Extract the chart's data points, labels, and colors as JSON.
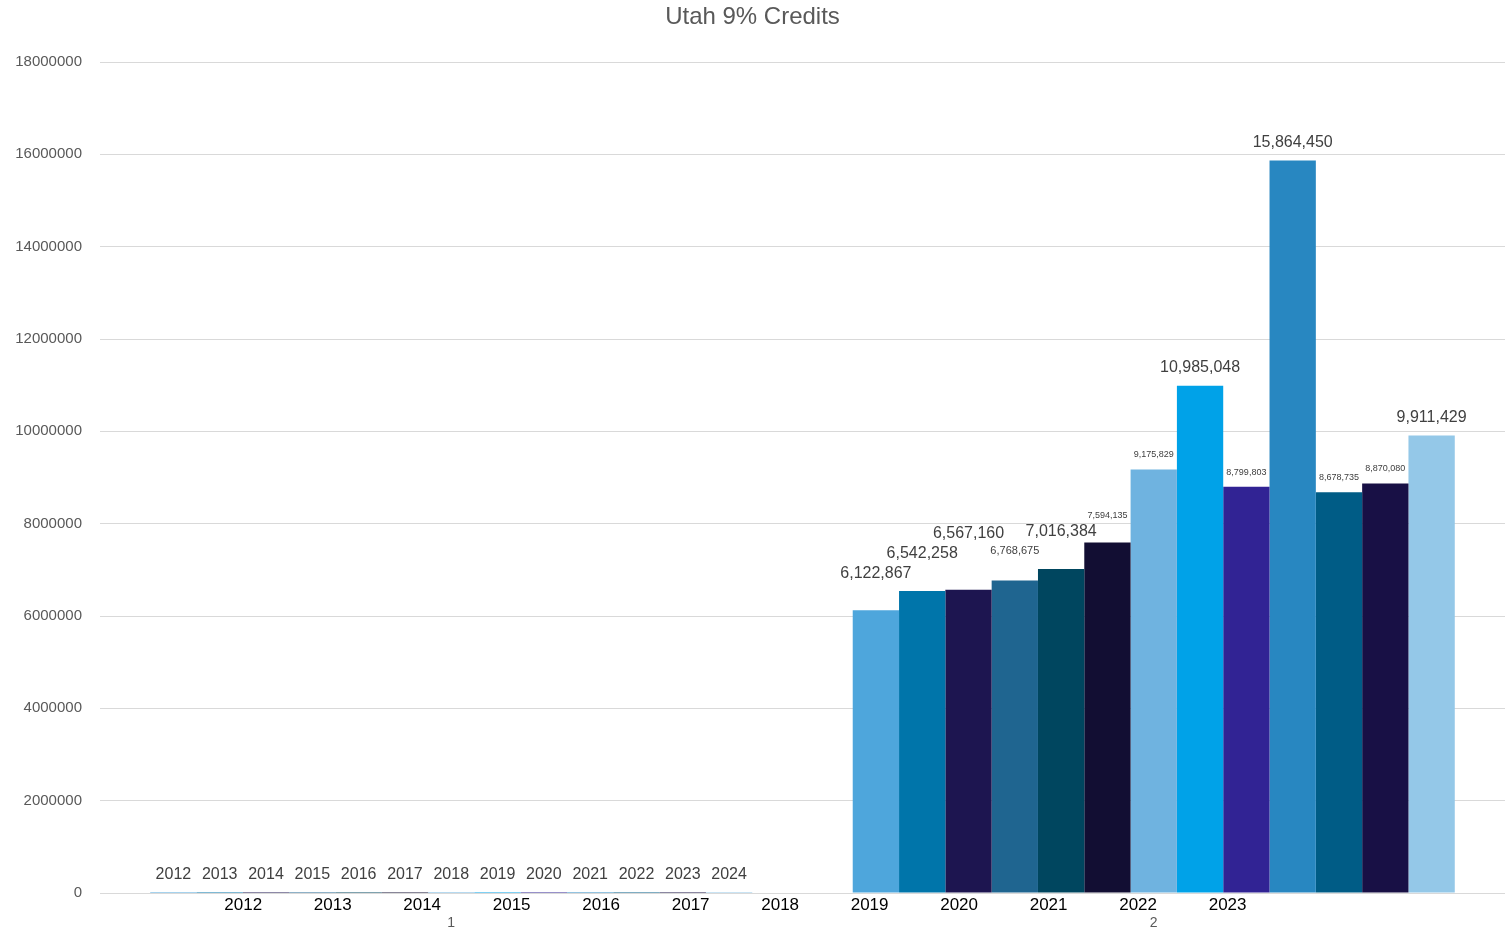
{
  "chart_data": {
    "type": "bar",
    "title": "Utah 9% Credits",
    "categories": [
      "1",
      "2"
    ],
    "series": [
      {
        "color": "#4ea6dc",
        "values": [
          2012,
          6122867
        ],
        "value_labels": [
          "2012",
          "6,122,867"
        ]
      },
      {
        "color": "#0075aa",
        "values": [
          2013,
          6542258
        ],
        "value_labels": [
          "2013",
          "6,542,258"
        ]
      },
      {
        "color": "#1d1550",
        "values": [
          2014,
          6567160
        ],
        "value_labels": [
          "2014",
          "6,567,160"
        ]
      },
      {
        "color": "#1f6590",
        "values": [
          2015,
          6768675
        ],
        "value_labels": [
          "2015",
          "6,768,675"
        ]
      },
      {
        "color": "#00465f",
        "values": [
          2016,
          7016384
        ],
        "value_labels": [
          "2016",
          "7,016,384"
        ]
      },
      {
        "color": "#120e33",
        "values": [
          2017,
          7594135
        ],
        "value_labels": [
          "2017",
          "7,594,135"
        ]
      },
      {
        "color": "#6fb3e0",
        "values": [
          2018,
          9175829
        ],
        "value_labels": [
          "2018",
          "9,175,829"
        ]
      },
      {
        "color": "#00a2e8",
        "values": [
          2019,
          10985048
        ],
        "value_labels": [
          "2019",
          "10,985,048"
        ]
      },
      {
        "color": "#312394",
        "values": [
          2020,
          8799803
        ],
        "value_labels": [
          "2020",
          "8,799,803"
        ]
      },
      {
        "color": "#2887c1",
        "values": [
          2021,
          15864450
        ],
        "value_labels": [
          "2021",
          "15,864,450"
        ]
      },
      {
        "color": "#005c86",
        "values": [
          2022,
          8678735
        ],
        "value_labels": [
          "2022",
          "8,678,735"
        ]
      },
      {
        "color": "#181045",
        "values": [
          2023,
          8870080
        ],
        "value_labels": [
          "2023",
          "8,870,080"
        ]
      },
      {
        "color": "#94c8e8",
        "values": [
          2024,
          9911429
        ],
        "value_labels": [
          "2024",
          "9,911,429"
        ]
      }
    ],
    "ylim": [
      0,
      18000000
    ],
    "yticks": [
      0,
      2000000,
      4000000,
      6000000,
      8000000,
      10000000,
      12000000,
      14000000,
      16000000,
      18000000
    ],
    "grid": "y",
    "annotations": [
      "2012",
      "2013",
      "2014",
      "2015",
      "2016",
      "2017",
      "2018",
      "2019",
      "2020",
      "2021",
      "2022",
      "2023"
    ]
  }
}
